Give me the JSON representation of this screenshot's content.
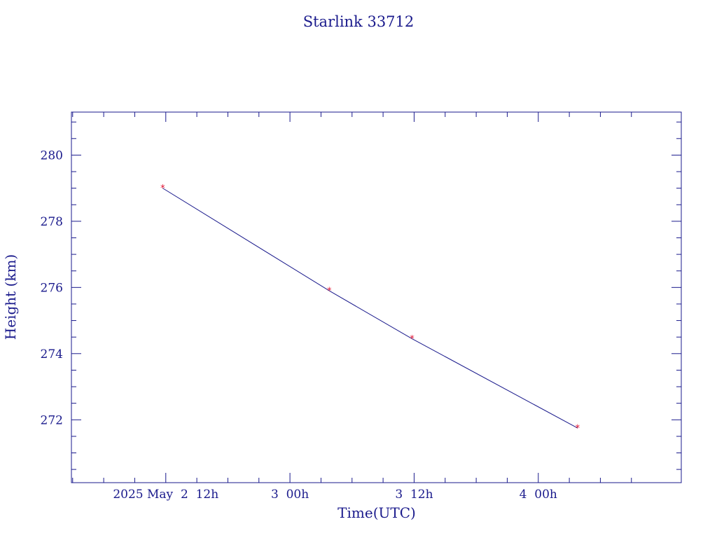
{
  "chart_data": {
    "type": "line",
    "title": "Starlink 33712",
    "xlabel": "Time(UTC)",
    "ylabel": "Height (km)",
    "x_ticks": [
      {
        "t": 12,
        "label": "2025 May  2  12h"
      },
      {
        "t": 24,
        "label": "3  00h"
      },
      {
        "t": 36,
        "label": "3  12h"
      },
      {
        "t": 48,
        "label": "4  00h"
      }
    ],
    "y_ticks": [
      272,
      274,
      276,
      278,
      280
    ],
    "xlim": [
      2.88,
      61.82
    ],
    "ylim": [
      270.1,
      281.3
    ],
    "series": [
      {
        "x": [
          11.7,
          27.8,
          35.8,
          51.8
        ],
        "y": [
          279.0,
          275.9,
          274.45,
          271.75
        ]
      }
    ],
    "colors": {
      "axes": "#1a1a8c",
      "line": "#1a1a8c",
      "markers": "#e0102f"
    }
  }
}
